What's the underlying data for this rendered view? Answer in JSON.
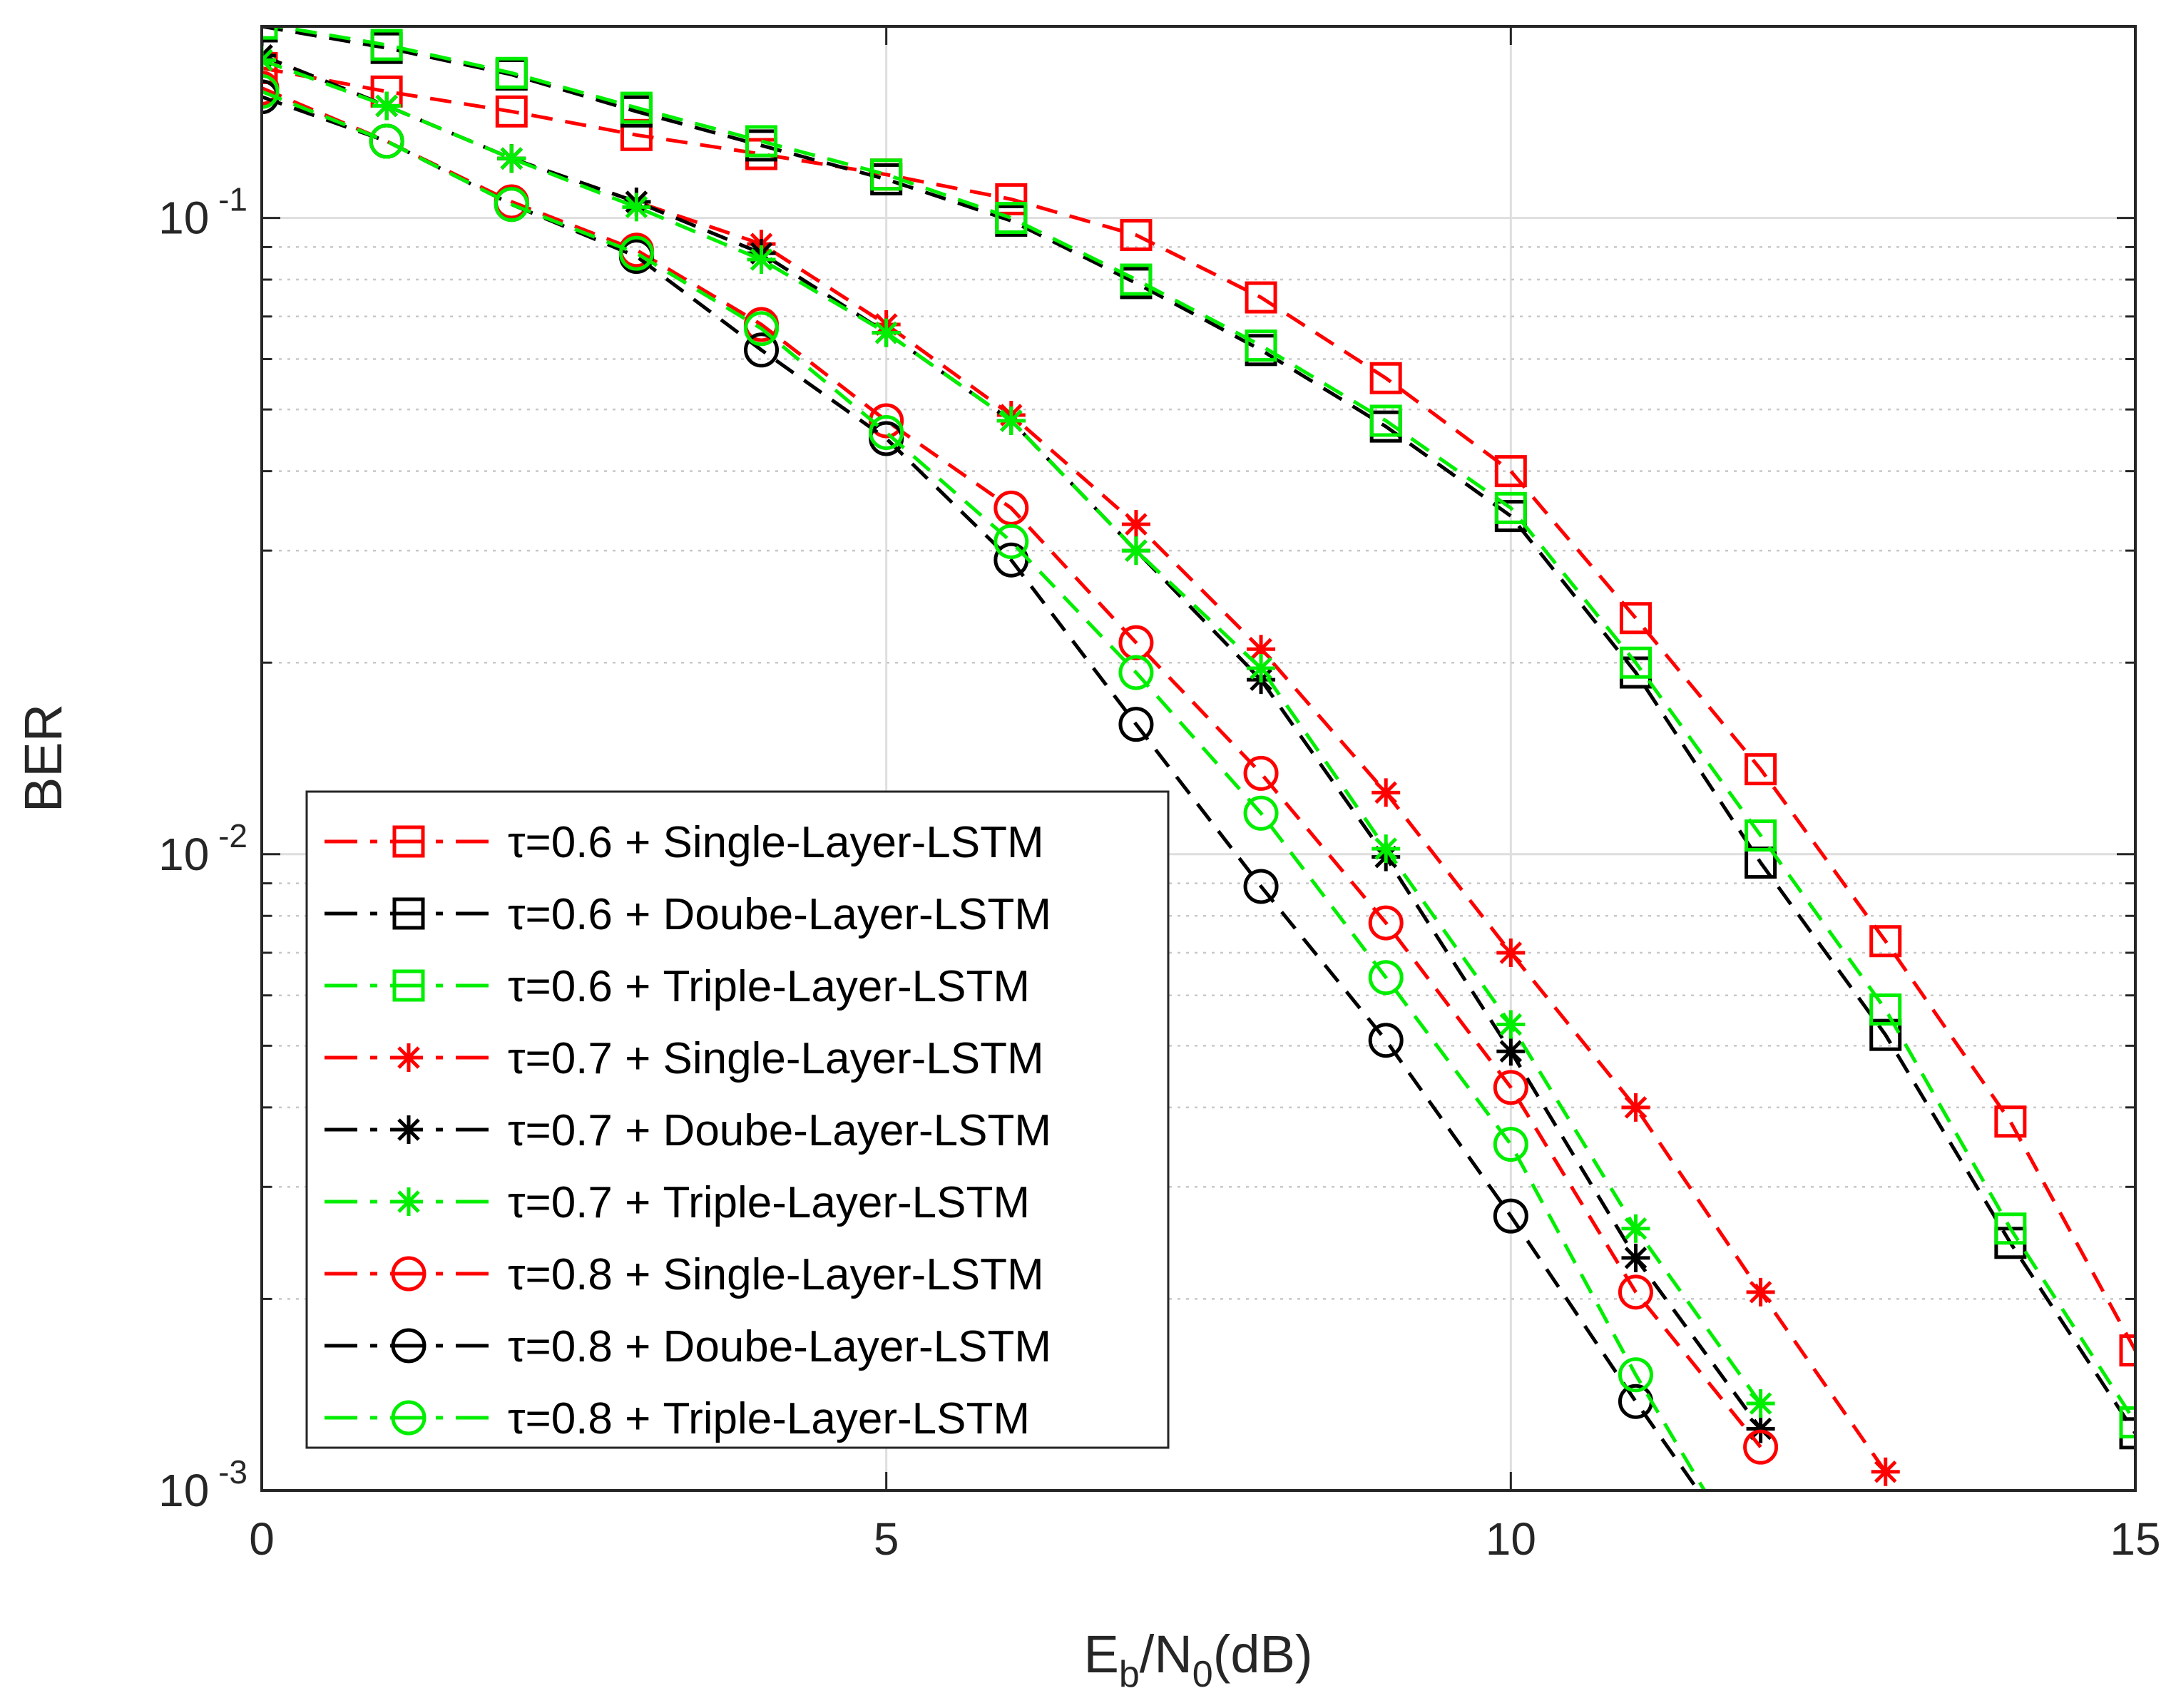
{
  "chart_data": {
    "type": "line",
    "title": "",
    "xlabel": {
      "main": "E",
      "sub1": "b",
      "mid": "/N",
      "sub2": "0",
      "tail": "(dB)"
    },
    "ylabel": "BER",
    "x_scale": "linear",
    "y_scale": "log",
    "xlim": [
      0,
      15
    ],
    "ylim": [
      0.001,
      0.2
    ],
    "grid": true,
    "legend_location": "bottom-left",
    "x_ticks": [
      {
        "value": 0,
        "label": "0"
      },
      {
        "value": 5,
        "label": "5"
      },
      {
        "value": 10,
        "label": "10"
      },
      {
        "value": 15,
        "label": "15"
      }
    ],
    "y_ticks": [
      {
        "value": 0.1,
        "base": "10",
        "exp": "-1"
      },
      {
        "value": 0.01,
        "base": "10",
        "exp": "-2"
      },
      {
        "value": 0.001,
        "base": "10",
        "exp": "-3"
      }
    ],
    "series": [
      {
        "name": "τ=0.6 + Single-Layer-LSTM",
        "color": "#ff0000",
        "marker": "square",
        "x": [
          0,
          1,
          2,
          3,
          4,
          5,
          6,
          7,
          8,
          9,
          10,
          11,
          12,
          13,
          14,
          15
        ],
        "y": [
          0.172,
          0.158,
          0.147,
          0.135,
          0.126,
          0.117,
          0.107,
          0.094,
          0.075,
          0.056,
          0.04,
          0.0235,
          0.0136,
          0.0073,
          0.0038,
          0.00166
        ]
      },
      {
        "name": "τ=0.6 + Doube-Layer-LSTM",
        "color": "#000000",
        "marker": "square",
        "x": [
          0,
          1,
          2,
          3,
          4,
          5,
          6,
          7,
          8,
          9,
          10,
          11,
          12,
          13,
          14,
          15
        ],
        "y": [
          0.2,
          0.185,
          0.168,
          0.147,
          0.13,
          0.115,
          0.099,
          0.079,
          0.062,
          0.047,
          0.034,
          0.0193,
          0.0097,
          0.0052,
          0.00245,
          0.00123
        ]
      },
      {
        "name": "τ=0.6 + Triple-Layer-LSTM",
        "color": "#00ee00",
        "marker": "square",
        "x": [
          0,
          1,
          2,
          3,
          4,
          5,
          6,
          7,
          8,
          9,
          10,
          11,
          12,
          13,
          14,
          15
        ],
        "y": [
          0.202,
          0.187,
          0.169,
          0.149,
          0.132,
          0.117,
          0.1,
          0.08,
          0.063,
          0.048,
          0.035,
          0.02,
          0.0107,
          0.0057,
          0.00258,
          0.00128
        ]
      },
      {
        "name": "τ=0.7 + Single-Layer-LSTM",
        "color": "#ff0000",
        "marker": "asterisk",
        "x": [
          0,
          1,
          2,
          3,
          4,
          5,
          6,
          7,
          8,
          9,
          10,
          11,
          12,
          13
        ],
        "y": [
          0.18,
          0.15,
          0.124,
          0.106,
          0.091,
          0.068,
          0.049,
          0.033,
          0.021,
          0.0125,
          0.007,
          0.004,
          0.00205,
          0.00107
        ]
      },
      {
        "name": "τ=0.7 + Doube-Layer-LSTM",
        "color": "#000000",
        "marker": "asterisk",
        "x": [
          0,
          1,
          2,
          3,
          4,
          5,
          6,
          7,
          8,
          9,
          10,
          11,
          12
        ],
        "y": [
          0.18,
          0.15,
          0.124,
          0.106,
          0.088,
          0.066,
          0.048,
          0.03,
          0.0188,
          0.0099,
          0.0049,
          0.00232,
          0.00125
        ]
      },
      {
        "name": "τ=0.7 + Triple-Layer-LSTM",
        "color": "#00ee00",
        "marker": "asterisk",
        "x": [
          0,
          1,
          2,
          3,
          4,
          5,
          6,
          7,
          8,
          9,
          10,
          11,
          12
        ],
        "y": [
          0.177,
          0.15,
          0.124,
          0.104,
          0.086,
          0.066,
          0.048,
          0.03,
          0.0196,
          0.0102,
          0.0054,
          0.00258,
          0.00137
        ]
      },
      {
        "name": "τ=0.8 + Single-Layer-LSTM",
        "color": "#ff0000",
        "marker": "circle",
        "x": [
          0,
          1,
          2,
          3,
          4,
          5,
          6,
          7,
          8,
          9,
          10,
          11,
          12
        ],
        "y": [
          0.16,
          0.132,
          0.106,
          0.089,
          0.068,
          0.048,
          0.035,
          0.0215,
          0.0134,
          0.0078,
          0.0043,
          0.00205,
          0.00117
        ]
      },
      {
        "name": "τ=0.8 + Doube-Layer-LSTM",
        "color": "#000000",
        "marker": "circle",
        "x": [
          0,
          1,
          2,
          3,
          4,
          5,
          6,
          7,
          8,
          9,
          10,
          11,
          11.5
        ],
        "y": [
          0.155,
          0.132,
          0.105,
          0.087,
          0.062,
          0.045,
          0.029,
          0.016,
          0.0089,
          0.0051,
          0.0027,
          0.00138,
          0.001
        ]
      },
      {
        "name": "τ=0.8 + Triple-Layer-LSTM",
        "color": "#00ee00",
        "marker": "circle",
        "x": [
          0,
          1,
          2,
          3,
          4,
          5,
          6,
          7,
          8,
          9,
          10,
          11,
          11.55
        ],
        "y": [
          0.158,
          0.132,
          0.105,
          0.088,
          0.067,
          0.046,
          0.031,
          0.0193,
          0.0116,
          0.0064,
          0.0035,
          0.00152,
          0.001
        ]
      }
    ]
  }
}
